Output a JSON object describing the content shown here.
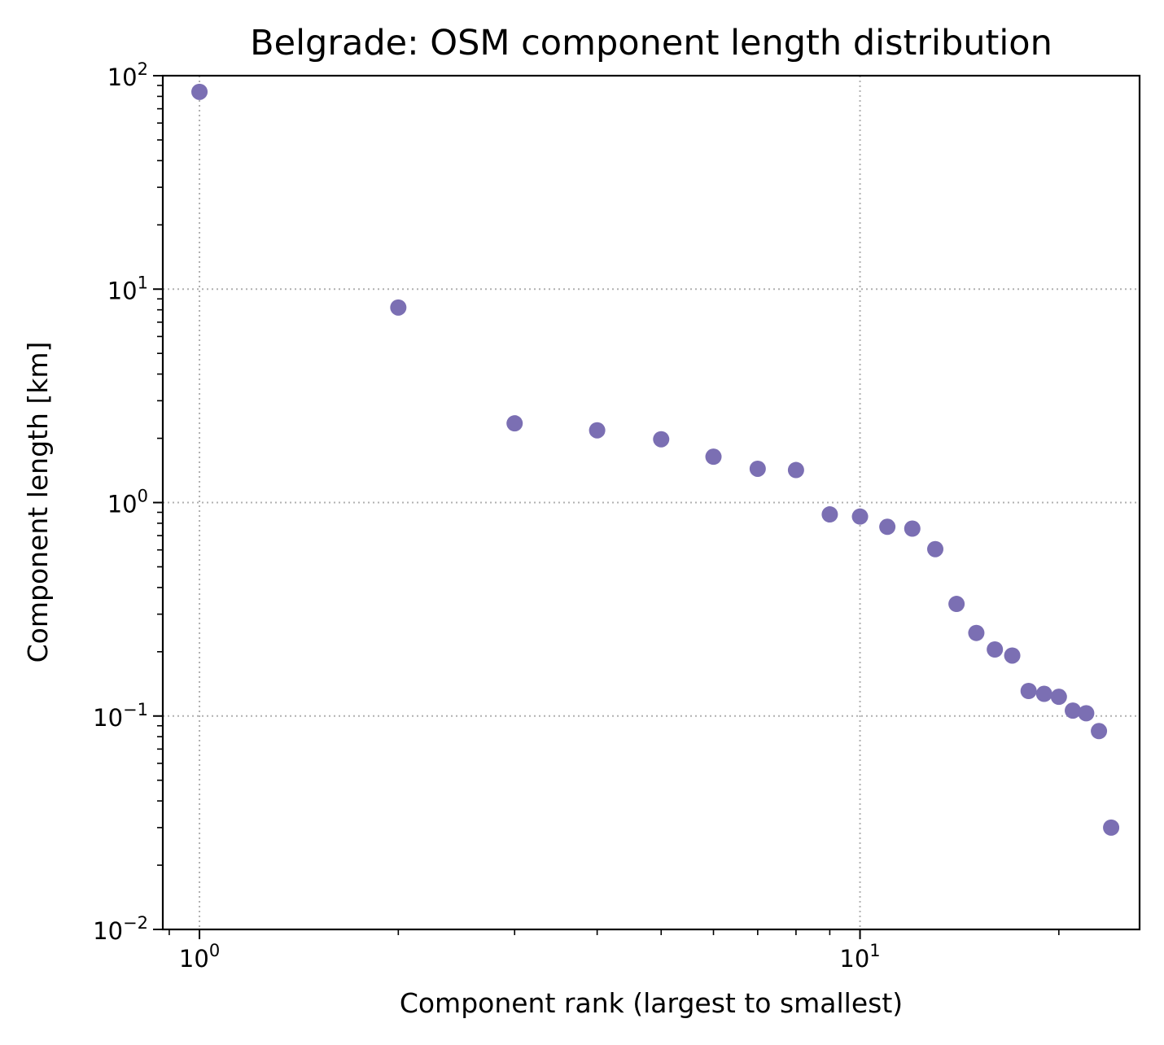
{
  "chart_data": {
    "type": "scatter",
    "title": "Belgrade: OSM component length distribution",
    "xlabel": "Component rank (largest to smallest)",
    "ylabel": "Component length [km]",
    "xscale": "log",
    "yscale": "log",
    "xlim": [
      0.88,
      26.5
    ],
    "ylim": [
      0.01,
      100
    ],
    "x_ticks": [
      {
        "base": "10",
        "exp": "0",
        "value": 1
      },
      {
        "base": "10",
        "exp": "1",
        "value": 10
      }
    ],
    "y_ticks": [
      {
        "base": "10",
        "exp": "2",
        "value": 100
      },
      {
        "base": "10",
        "exp": "1",
        "value": 10
      },
      {
        "base": "10",
        "exp": "0",
        "value": 1
      },
      {
        "base": "10",
        "exp": "−1",
        "value": 0.1
      },
      {
        "base": "10",
        "exp": "−2",
        "value": 0.01
      }
    ],
    "grid": true,
    "color": "#7b6fb3",
    "points": [
      {
        "x": 1,
        "y": 84
      },
      {
        "x": 2,
        "y": 8.2
      },
      {
        "x": 3,
        "y": 2.35
      },
      {
        "x": 4,
        "y": 2.18
      },
      {
        "x": 5,
        "y": 1.98
      },
      {
        "x": 6,
        "y": 1.64
      },
      {
        "x": 7,
        "y": 1.44
      },
      {
        "x": 8,
        "y": 1.42
      },
      {
        "x": 9,
        "y": 0.88
      },
      {
        "x": 10,
        "y": 0.86
      },
      {
        "x": 11,
        "y": 0.77
      },
      {
        "x": 12,
        "y": 0.755
      },
      {
        "x": 13,
        "y": 0.605
      },
      {
        "x": 14,
        "y": 0.335
      },
      {
        "x": 15,
        "y": 0.245
      },
      {
        "x": 16,
        "y": 0.205
      },
      {
        "x": 17,
        "y": 0.192
      },
      {
        "x": 18,
        "y": 0.131
      },
      {
        "x": 19,
        "y": 0.127
      },
      {
        "x": 20,
        "y": 0.123
      },
      {
        "x": 21,
        "y": 0.106
      },
      {
        "x": 22,
        "y": 0.103
      },
      {
        "x": 23,
        "y": 0.085
      },
      {
        "x": 24,
        "y": 0.03
      }
    ]
  }
}
